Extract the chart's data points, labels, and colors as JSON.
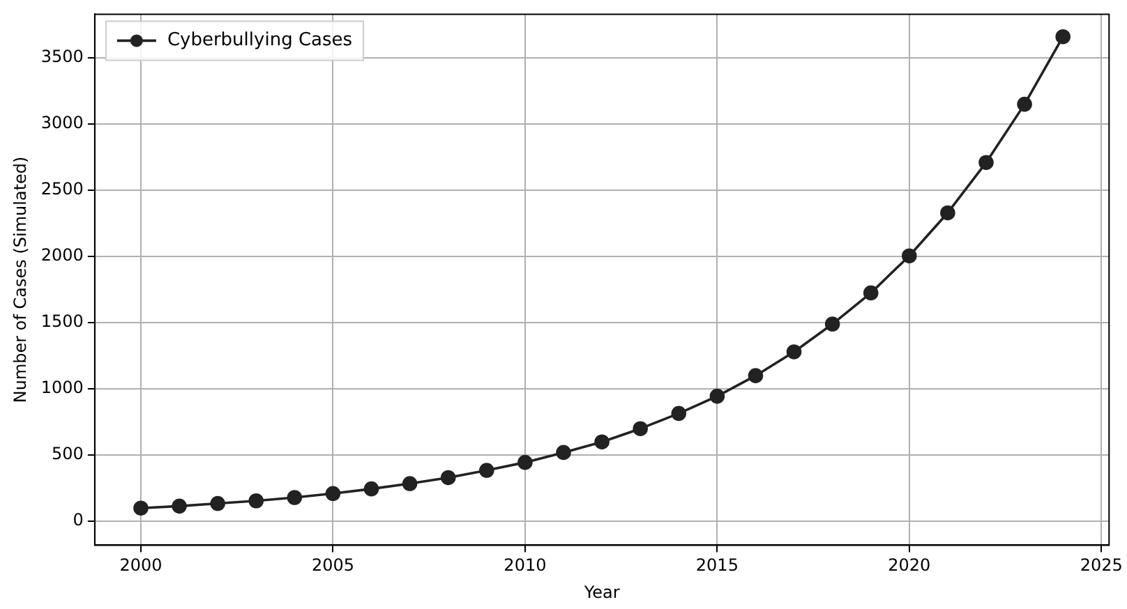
{
  "chart_data": {
    "type": "line",
    "xlabel": "Year",
    "ylabel": "Number of Cases (Simulated)",
    "x": [
      2000,
      2001,
      2002,
      2003,
      2004,
      2005,
      2006,
      2007,
      2008,
      2009,
      2010,
      2011,
      2012,
      2013,
      2014,
      2015,
      2016,
      2017,
      2018,
      2019,
      2020,
      2021,
      2022,
      2023,
      2024
    ],
    "series": [
      {
        "name": "Cyberbullying Cases",
        "color": "#222222",
        "values": [
          100,
          115,
          135,
          155,
          180,
          210,
          245,
          285,
          330,
          385,
          445,
          520,
          600,
          700,
          815,
          945,
          1100,
          1280,
          1490,
          1725,
          2005,
          2330,
          2710,
          3150,
          3660
        ]
      }
    ],
    "xlim": [
      1998.8,
      2025.2
    ],
    "xticks": [
      2000,
      2005,
      2010,
      2015,
      2020,
      2025
    ],
    "ylim": [
      -180,
      3830
    ],
    "yticks": [
      0,
      500,
      1000,
      1500,
      2000,
      2500,
      3000,
      3500
    ],
    "grid": true,
    "legend": "top left",
    "marker": "circle",
    "line_style": "solid"
  }
}
